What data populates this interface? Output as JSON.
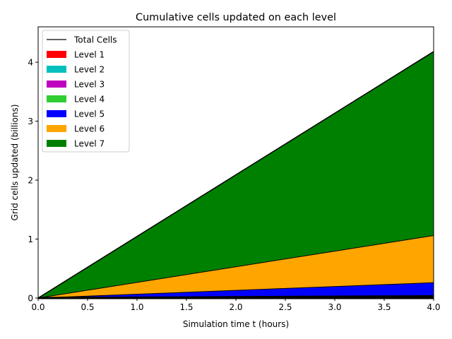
{
  "chart_data": {
    "type": "area",
    "title": "Cumulative cells updated on each level",
    "xlabel": "Simulation time t (hours)",
    "ylabel": "Grid cells updated (billions)",
    "xlim": [
      0.0,
      4.0
    ],
    "ylim": [
      0,
      4.6
    ],
    "x_ticks": [
      "0.0",
      "0.5",
      "1.0",
      "1.5",
      "2.0",
      "2.5",
      "3.0",
      "3.5",
      "4.0"
    ],
    "y_ticks": [
      "0",
      "1",
      "2",
      "3",
      "4"
    ],
    "stacked": true,
    "legend_position": "top-left",
    "grid": false,
    "x": [
      0.0,
      4.0
    ],
    "series": [
      {
        "name": "Level 1",
        "color": "#ff0000",
        "values": [
          0,
          0.0005
        ]
      },
      {
        "name": "Level 2",
        "color": "#00bfbf",
        "values": [
          0,
          0.002
        ]
      },
      {
        "name": "Level 3",
        "color": "#bf00bf",
        "values": [
          0,
          0.008
        ]
      },
      {
        "name": "Level 4",
        "color": "#32cd32",
        "values": [
          0,
          0.02
        ]
      },
      {
        "name": "Level 5",
        "color": "#0000ff",
        "values": [
          0,
          0.23
        ]
      },
      {
        "name": "Level 6",
        "color": "#ffa500",
        "values": [
          0,
          0.8
        ]
      },
      {
        "name": "Level 7",
        "color": "#008000",
        "values": [
          0,
          3.12
        ]
      }
    ],
    "total_line": {
      "name": "Total Cells",
      "color": "#000000",
      "values": [
        0,
        4.18
      ]
    }
  }
}
